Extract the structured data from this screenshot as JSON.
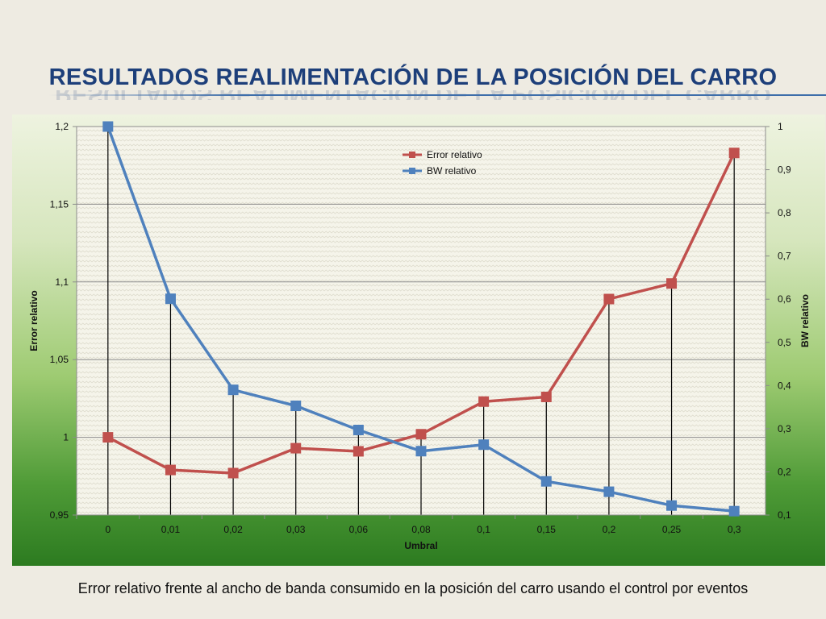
{
  "slide": {
    "title": "RESULTADOS REALIMENTACIÓN DE LA POSICIÓN DEL CARRO",
    "caption": "Error relativo frente al ancho de banda consumido en la posición del carro usando el control por eventos"
  },
  "chart_data": {
    "type": "line",
    "title": "",
    "xlabel": "Umbral",
    "ylabel": "Error relativo",
    "y2label": "BW relativo",
    "categories": [
      "0",
      "0,01",
      "0,02",
      "0,03",
      "0,06",
      "0,08",
      "0,1",
      "0,15",
      "0,2",
      "0,25",
      "0,3"
    ],
    "ylim": [
      0.95,
      1.2
    ],
    "y2lim": [
      0.1,
      1
    ],
    "yticks": [
      "0,95",
      "1",
      "1,05",
      "1,1",
      "1,15",
      "1,2"
    ],
    "y2ticks": [
      "0,1",
      "0,2",
      "0,3",
      "0,4",
      "0,5",
      "0,6",
      "0,7",
      "0,8",
      "0,9",
      "1"
    ],
    "grid": true,
    "legend_position": "top-center",
    "series": [
      {
        "name": "Error relativo",
        "axis": "left",
        "color": "#c0504d",
        "values": [
          1.0,
          0.979,
          0.977,
          0.993,
          0.991,
          1.002,
          1.023,
          1.026,
          1.089,
          1.099,
          1.183
        ]
      },
      {
        "name": "BW relativo",
        "axis": "right",
        "color": "#4f81bd",
        "values": [
          1.0,
          0.601,
          0.39,
          0.353,
          0.297,
          0.248,
          0.263,
          0.178,
          0.154,
          0.122,
          0.109
        ]
      }
    ]
  }
}
